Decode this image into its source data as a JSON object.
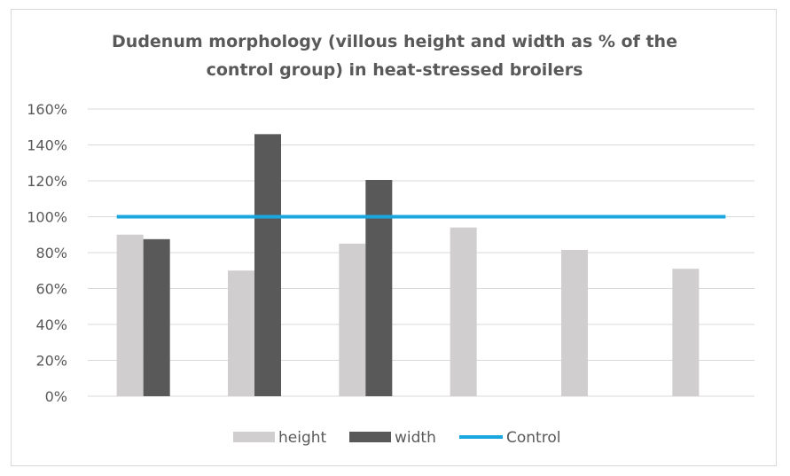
{
  "chart_data": {
    "type": "bar",
    "title_lines": [
      "Dudenum morphology (villous height and width as % of the",
      "control group) in heat-stressed broilers"
    ],
    "categories": [
      "",
      "",
      "",
      "",
      "",
      ""
    ],
    "series": [
      {
        "name": "height",
        "kind": "bar",
        "color": "#d0cece",
        "values": [
          90,
          70,
          85,
          94,
          81.5,
          71
        ]
      },
      {
        "name": "width",
        "kind": "bar",
        "color": "#595959",
        "values": [
          87.5,
          146,
          120.5,
          null,
          null,
          null
        ]
      },
      {
        "name": "Control",
        "kind": "line",
        "color": "#1aa7e0",
        "values": [
          100,
          100,
          100,
          100,
          100,
          100
        ]
      }
    ],
    "yaxis": {
      "min": 0,
      "max": 160,
      "step": 20,
      "tick_labels": [
        "0%",
        "20%",
        "40%",
        "60%",
        "80%",
        "100%",
        "120%",
        "140%",
        "160%"
      ]
    },
    "grid": true,
    "legend": {
      "position": "bottom",
      "items": [
        "height",
        "width",
        "Control"
      ]
    },
    "colors": {
      "grid": "#d9d9d9",
      "text": "#595959"
    }
  }
}
